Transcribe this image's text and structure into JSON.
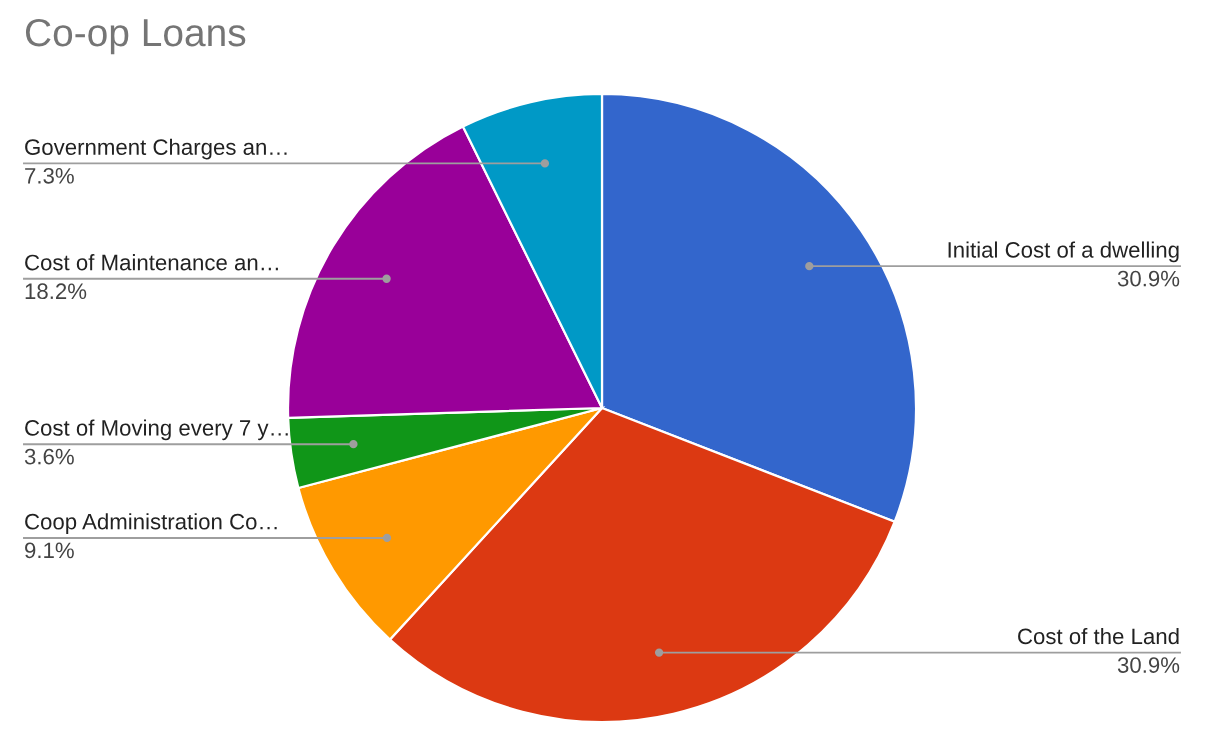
{
  "chart_data": {
    "type": "pie",
    "title": "Co-op Loans",
    "categories": [
      "Initial Cost of a dwelling",
      "Cost of the Land",
      "Coop Administration Co…",
      "Cost of Moving every 7 y…",
      "Cost of Maintenance an…",
      "Government Charges an…"
    ],
    "values": [
      30.9,
      30.9,
      9.1,
      3.6,
      18.2,
      7.3
    ],
    "colors": [
      "#3366cc",
      "#dc3912",
      "#ff9900",
      "#109618",
      "#990099",
      "#0099c6"
    ],
    "value_labels": [
      "30.9%",
      "30.9%",
      "9.1%",
      "3.6%",
      "18.2%",
      "7.3%"
    ]
  }
}
